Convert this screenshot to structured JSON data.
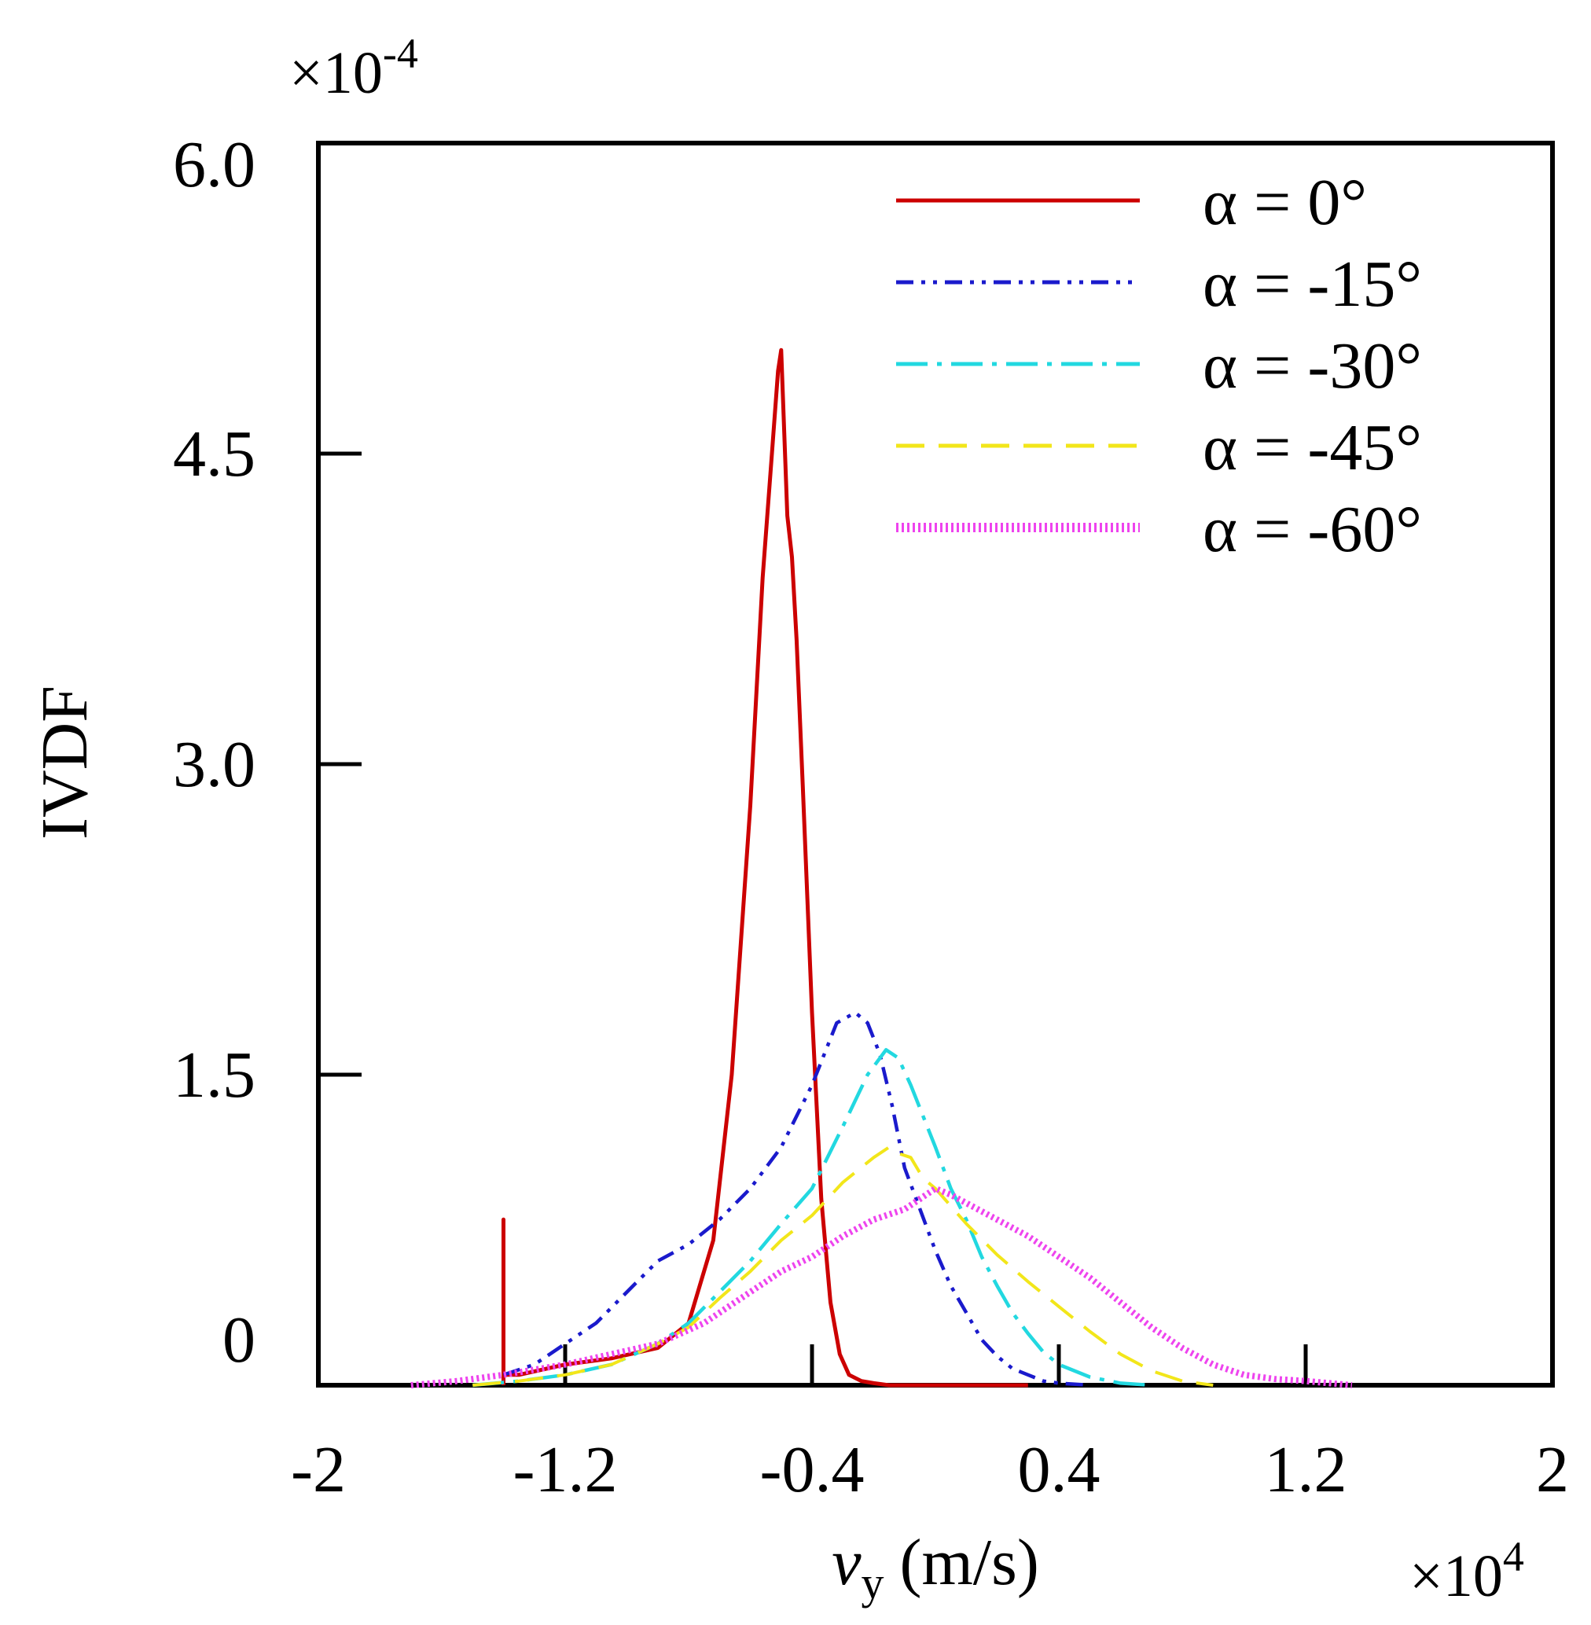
{
  "chart_data": {
    "type": "line",
    "title": "",
    "xlabel": "v_y (m/s)",
    "xlabel_var": "v",
    "xlabel_sub": "y",
    "xlabel_unit": "(m/s)",
    "ylabel": "IVDF",
    "x_multiplier": {
      "base": "×10",
      "exp": "4"
    },
    "y_multiplier": {
      "base": "×10",
      "exp": "-4"
    },
    "xlim": [
      -2,
      2
    ],
    "ylim": [
      0,
      6.0
    ],
    "x_ticks": [
      -2,
      -1.2,
      -0.4,
      0.4,
      1.2,
      2
    ],
    "x_tick_labels": [
      "-2",
      "-1.2",
      "-0.4",
      "0.4",
      "1.2",
      "2"
    ],
    "y_ticks": [
      0,
      1.5,
      3.0,
      4.5,
      6.0
    ],
    "y_tick_labels": [
      "0",
      "1.5",
      "3.0",
      "4.5",
      "6.0"
    ],
    "grid": false,
    "legend_position": "top-right",
    "series": [
      {
        "name": "α = 0°",
        "color": "#cc0000",
        "dash": "solid",
        "x": [
          -1.4,
          -1.4,
          -1.4,
          -1.35,
          -1.2,
          -1.05,
          -0.9,
          -0.8,
          -0.72,
          -0.66,
          -0.6,
          -0.56,
          -0.53,
          -0.51,
          -0.5,
          -0.49,
          -0.48,
          -0.465,
          -0.45,
          -0.43,
          -0.4,
          -0.37,
          -0.34,
          -0.31,
          -0.28,
          -0.24,
          -0.2,
          -0.15,
          -0.1,
          0.0,
          0.3
        ],
        "y": [
          0.0,
          0.8,
          0.05,
          0.05,
          0.1,
          0.13,
          0.18,
          0.3,
          0.7,
          1.5,
          2.8,
          3.9,
          4.5,
          4.9,
          5.0,
          4.6,
          4.2,
          4.0,
          3.6,
          2.9,
          1.8,
          0.9,
          0.4,
          0.15,
          0.05,
          0.02,
          0.01,
          0.0,
          0.0,
          0.0,
          0.0
        ]
      },
      {
        "name": "α = -15°",
        "color": "#1a1acc",
        "dash": "dashdotdot",
        "x": [
          -1.4,
          -1.3,
          -1.2,
          -1.1,
          -1.0,
          -0.9,
          -0.8,
          -0.7,
          -0.6,
          -0.5,
          -0.4,
          -0.32,
          -0.26,
          -0.22,
          -0.18,
          -0.14,
          -0.1,
          -0.05,
          0.0,
          0.05,
          0.1,
          0.15,
          0.2,
          0.25,
          0.3,
          0.35,
          0.4,
          0.5
        ],
        "y": [
          0.05,
          0.1,
          0.2,
          0.3,
          0.45,
          0.6,
          0.68,
          0.8,
          0.95,
          1.15,
          1.45,
          1.75,
          1.8,
          1.75,
          1.6,
          1.35,
          1.05,
          0.85,
          0.65,
          0.48,
          0.35,
          0.22,
          0.14,
          0.08,
          0.05,
          0.02,
          0.01,
          0.0
        ]
      },
      {
        "name": "α = -30°",
        "color": "#22d8e0",
        "dash": "longdashdot",
        "x": [
          -1.5,
          -1.35,
          -1.2,
          -1.05,
          -0.9,
          -0.8,
          -0.7,
          -0.6,
          -0.5,
          -0.4,
          -0.3,
          -0.22,
          -0.16,
          -0.12,
          -0.08,
          -0.04,
          0.0,
          0.05,
          0.1,
          0.15,
          0.2,
          0.25,
          0.3,
          0.35,
          0.4,
          0.5,
          0.6,
          0.7
        ],
        "y": [
          0.0,
          0.02,
          0.05,
          0.1,
          0.2,
          0.3,
          0.45,
          0.6,
          0.78,
          0.95,
          1.25,
          1.5,
          1.62,
          1.58,
          1.45,
          1.3,
          1.15,
          0.95,
          0.8,
          0.62,
          0.48,
          0.35,
          0.25,
          0.16,
          0.1,
          0.04,
          0.01,
          0.0
        ]
      },
      {
        "name": "α = -45°",
        "color": "#f2e61a",
        "dash": "longdash",
        "x": [
          -1.5,
          -1.35,
          -1.2,
          -1.05,
          -0.9,
          -0.8,
          -0.7,
          -0.6,
          -0.5,
          -0.4,
          -0.3,
          -0.2,
          -0.15,
          -0.12,
          -0.08,
          -0.04,
          0.0,
          0.1,
          0.2,
          0.3,
          0.4,
          0.5,
          0.6,
          0.7,
          0.8,
          0.9
        ],
        "y": [
          0.0,
          0.02,
          0.05,
          0.1,
          0.2,
          0.28,
          0.42,
          0.55,
          0.7,
          0.82,
          0.98,
          1.1,
          1.15,
          1.12,
          1.1,
          1.0,
          0.95,
          0.78,
          0.63,
          0.5,
          0.38,
          0.26,
          0.15,
          0.07,
          0.02,
          0.0
        ]
      },
      {
        "name": "α = -60°",
        "color": "#ee44ee",
        "dash": "dotted",
        "x": [
          -1.7,
          -1.55,
          -1.4,
          -1.2,
          -1.05,
          -0.9,
          -0.75,
          -0.6,
          -0.5,
          -0.4,
          -0.3,
          -0.2,
          -0.1,
          -0.05,
          0.0,
          0.05,
          0.1,
          0.2,
          0.3,
          0.4,
          0.5,
          0.6,
          0.7,
          0.8,
          0.9,
          1.0,
          1.1,
          1.2,
          1.35
        ],
        "y": [
          0.0,
          0.02,
          0.05,
          0.1,
          0.15,
          0.2,
          0.3,
          0.45,
          0.55,
          0.62,
          0.72,
          0.8,
          0.85,
          0.9,
          0.95,
          0.92,
          0.88,
          0.8,
          0.72,
          0.62,
          0.52,
          0.4,
          0.28,
          0.18,
          0.1,
          0.05,
          0.03,
          0.02,
          0.0
        ]
      }
    ]
  }
}
